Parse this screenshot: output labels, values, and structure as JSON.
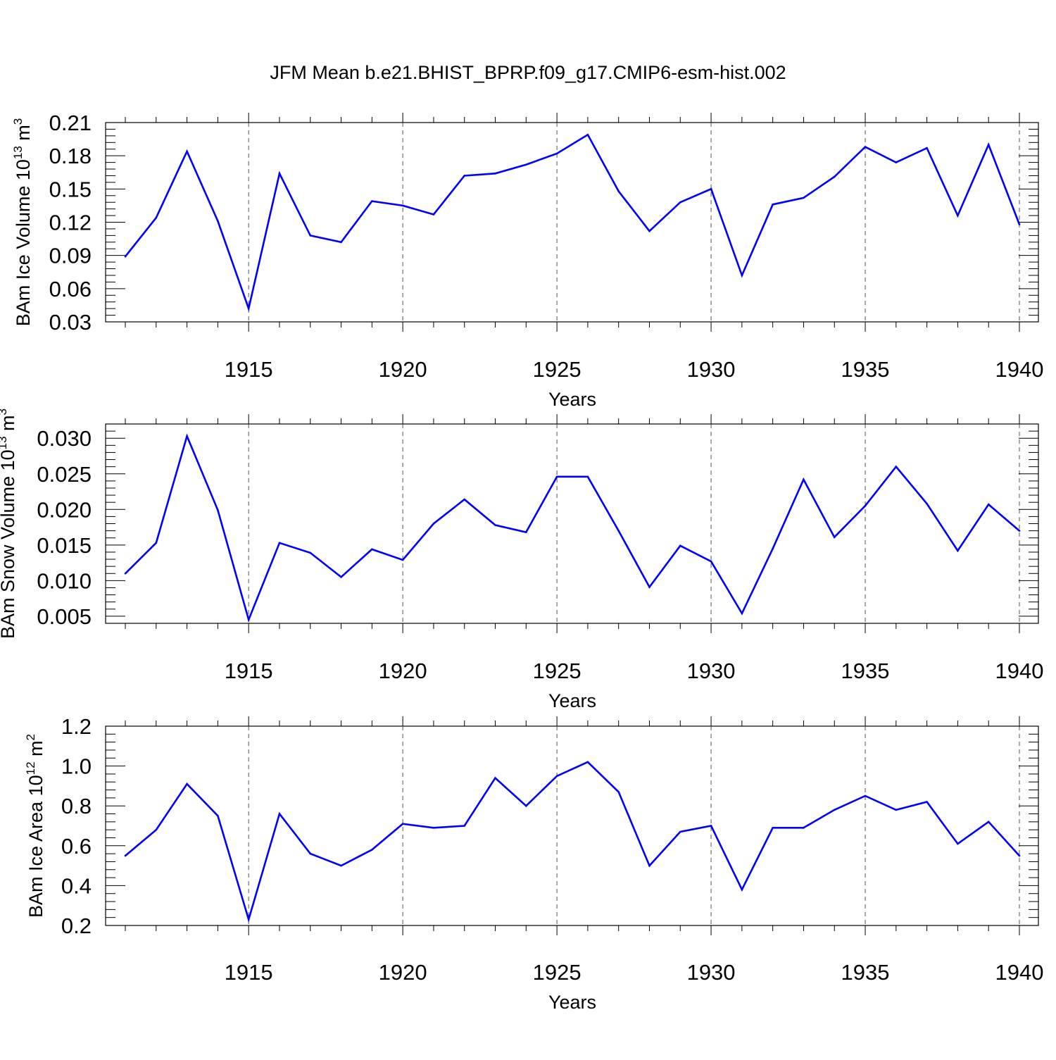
{
  "title": "JFM Mean b.e21.BHIST_BPRP.f09_g17.CMIP6-esm-hist.002",
  "line_color": "#0000ff",
  "chart_data": [
    {
      "type": "line",
      "ylabel": "BAm Ice Volume 10",
      "ylabel_exp": "13",
      "ylabel_unit": " m",
      "ylabel_unit_exp": "3",
      "xlabel": "Years",
      "xlim": [
        1911,
        1940
      ],
      "ylim": [
        0.03,
        0.21
      ],
      "xticks": [
        1915,
        1920,
        1925,
        1930,
        1935,
        1940
      ],
      "xtick_labels": [
        "1915",
        "1920",
        "1925",
        "1930",
        "1935",
        "1940"
      ],
      "yticks": [
        0.03,
        0.06,
        0.09,
        0.12,
        0.15,
        0.18,
        0.21
      ],
      "ytick_labels": [
        "0.03",
        "0.06",
        "0.09",
        "0.12",
        "0.15",
        "0.18",
        "0.21"
      ],
      "ymin_step": 0.006,
      "grid": "vertical dashed at major x ticks",
      "x": [
        1911,
        1912,
        1913,
        1914,
        1915,
        1916,
        1917,
        1918,
        1919,
        1920,
        1921,
        1922,
        1923,
        1924,
        1925,
        1926,
        1927,
        1928,
        1929,
        1930,
        1931,
        1932,
        1933,
        1934,
        1935,
        1936,
        1937,
        1938,
        1939,
        1940
      ],
      "values": [
        0.089,
        0.124,
        0.184,
        0.121,
        0.042,
        0.164,
        0.108,
        0.102,
        0.139,
        0.135,
        0.127,
        0.162,
        0.164,
        0.172,
        0.182,
        0.199,
        0.148,
        0.112,
        0.138,
        0.15,
        0.072,
        0.136,
        0.142,
        0.161,
        0.188,
        0.174,
        0.187,
        0.126,
        0.19,
        0.118
      ]
    },
    {
      "type": "line",
      "ylabel": "BAm Snow Volume 10",
      "ylabel_exp": "13",
      "ylabel_unit": " m",
      "ylabel_unit_exp": "3",
      "xlabel": "Years",
      "xlim": [
        1911,
        1940
      ],
      "ylim": [
        0.004,
        0.032
      ],
      "xticks": [
        1915,
        1920,
        1925,
        1930,
        1935,
        1940
      ],
      "xtick_labels": [
        "1915",
        "1920",
        "1925",
        "1930",
        "1935",
        "1940"
      ],
      "yticks": [
        0.005,
        0.01,
        0.015,
        0.02,
        0.025,
        0.03
      ],
      "ytick_labels": [
        "0.005",
        "0.010",
        "0.015",
        "0.020",
        "0.025",
        "0.030"
      ],
      "ymin_step": 0.001,
      "grid": "vertical dashed at major x ticks",
      "x": [
        1911,
        1912,
        1913,
        1914,
        1915,
        1916,
        1917,
        1918,
        1919,
        1920,
        1921,
        1922,
        1923,
        1924,
        1925,
        1926,
        1927,
        1928,
        1929,
        1930,
        1931,
        1932,
        1933,
        1934,
        1935,
        1936,
        1937,
        1938,
        1939,
        1940
      ],
      "values": [
        0.011,
        0.0153,
        0.0303,
        0.0199,
        0.0045,
        0.0153,
        0.0139,
        0.0105,
        0.0144,
        0.0129,
        0.018,
        0.0214,
        0.0178,
        0.0168,
        0.0246,
        0.0246,
        0.017,
        0.0091,
        0.0149,
        0.0127,
        0.0054,
        0.0145,
        0.0242,
        0.0161,
        0.0205,
        0.026,
        0.0208,
        0.0142,
        0.0207,
        0.017
      ]
    },
    {
      "type": "line",
      "ylabel": "BAm Ice Area 10",
      "ylabel_exp": "12",
      "ylabel_unit": " m",
      "ylabel_unit_exp": "2",
      "xlabel": "Years",
      "xlim": [
        1911,
        1940
      ],
      "ylim": [
        0.2,
        1.2
      ],
      "xticks": [
        1915,
        1920,
        1925,
        1930,
        1935,
        1940
      ],
      "xtick_labels": [
        "1915",
        "1920",
        "1925",
        "1930",
        "1935",
        "1940"
      ],
      "yticks": [
        0.2,
        0.4,
        0.6,
        0.8,
        1.0,
        1.2
      ],
      "ytick_labels": [
        "0.2",
        "0.4",
        "0.6",
        "0.8",
        "1.0",
        "1.2"
      ],
      "ymin_step": 0.04,
      "grid": "vertical dashed at major x ticks",
      "x": [
        1911,
        1912,
        1913,
        1914,
        1915,
        1916,
        1917,
        1918,
        1919,
        1920,
        1921,
        1922,
        1923,
        1924,
        1925,
        1926,
        1927,
        1928,
        1929,
        1930,
        1931,
        1932,
        1933,
        1934,
        1935,
        1936,
        1937,
        1938,
        1939,
        1940
      ],
      "values": [
        0.55,
        0.68,
        0.91,
        0.75,
        0.23,
        0.76,
        0.56,
        0.5,
        0.58,
        0.71,
        0.69,
        0.7,
        0.94,
        0.8,
        0.95,
        1.02,
        0.87,
        0.5,
        0.67,
        0.7,
        0.38,
        0.69,
        0.69,
        0.78,
        0.85,
        0.78,
        0.82,
        0.61,
        0.72,
        0.55
      ]
    }
  ]
}
